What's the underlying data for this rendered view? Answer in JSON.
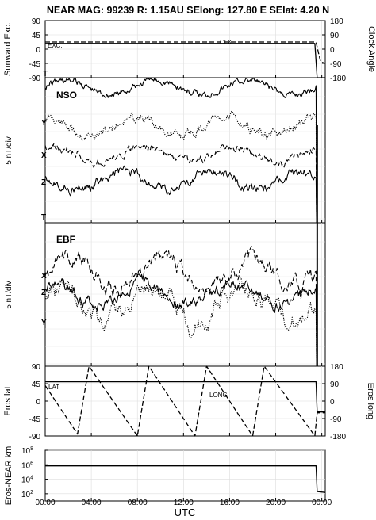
{
  "header": {
    "text": "NEAR MAG: 99239  R: 1.15AU  SElong: 127.80 E  SElat:    4.20 N"
  },
  "chart_data": [
    {
      "type": "line",
      "panel": "sunward",
      "ylabel_left": "Sunward Exc.",
      "ylabel_right": "Clock Angle",
      "yticks_left": [
        "90",
        "45",
        "0",
        "-45",
        "-90"
      ],
      "yticks_right": [
        "180",
        "90",
        "0",
        "-90",
        "-180"
      ],
      "ylim_left": [
        -90,
        90
      ],
      "ylim_right": [
        -180,
        180
      ],
      "labels": {
        "exc": "EXC.",
        "clk": "CLK",
        "marker": "T"
      },
      "series": [
        {
          "name": "EXC.",
          "style": "solid",
          "x": [
            0,
            1,
            4,
            8,
            12,
            16,
            20,
            23.4,
            23.6,
            24.3
          ],
          "y": [
            18,
            18,
            18,
            18,
            18,
            18,
            18,
            18,
            -90,
            -90
          ]
        },
        {
          "name": "CLK",
          "style": "dashed",
          "x": [
            0,
            4,
            8,
            12,
            16,
            20,
            23.5,
            23.7,
            23.9,
            24.3
          ],
          "y": [
            45,
            45,
            45,
            45,
            45,
            45,
            45,
            -20,
            -80,
            -90
          ]
        }
      ]
    },
    {
      "type": "line",
      "panel": "nso",
      "title": "NSO",
      "ylabel_left": "5 nT/div",
      "labels": [
        "Y",
        "X",
        "Z",
        "T"
      ],
      "series": [
        {
          "name": "Y",
          "style": "dotted"
        },
        {
          "name": "X",
          "style": "dashed"
        },
        {
          "name": "Z",
          "style": "solid"
        },
        {
          "name": "T",
          "style": "solid"
        }
      ]
    },
    {
      "type": "line",
      "panel": "ebf",
      "title": "EBF",
      "ylabel_left": "5 nT/div",
      "labels": [
        "X",
        "Z",
        "Y"
      ],
      "series": [
        {
          "name": "X",
          "style": "dashed"
        },
        {
          "name": "Z",
          "style": "solid"
        },
        {
          "name": "Y",
          "style": "dotted"
        }
      ]
    },
    {
      "type": "line",
      "panel": "eros",
      "ylabel_left": "Eros lat",
      "ylabel_right": "Eros long",
      "yticks_left": [
        "90",
        "45",
        "0",
        "-45",
        "-90"
      ],
      "yticks_right": [
        "180",
        "90",
        "0",
        "-90",
        "-180"
      ],
      "ylim_left": [
        -90,
        90
      ],
      "ylim_right": [
        -180,
        180
      ],
      "labels": {
        "lat": "LAT",
        "long": "LONG"
      },
      "series": [
        {
          "name": "LAT",
          "style": "solid",
          "x": [
            0,
            4,
            8,
            12,
            16,
            20,
            23.5,
            23.6,
            24.3
          ],
          "y": [
            50,
            50,
            50,
            50,
            50,
            50,
            50,
            -28,
            -28
          ]
        },
        {
          "name": "LONG",
          "style": "dashed",
          "x": [
            0,
            2.8,
            3.8,
            8.0,
            9.0,
            13.0,
            14.0,
            18.0,
            19.0,
            23.4,
            23.6,
            24.3
          ],
          "y": [
            80,
            -170,
            180,
            -180,
            180,
            -180,
            180,
            -180,
            180,
            -180,
            -60,
            -60
          ]
        }
      ]
    },
    {
      "type": "line",
      "panel": "distance",
      "ylabel_left": "Eros-NEAR km",
      "yscale": "log",
      "yticks_left": [
        "10^8",
        "10^6",
        "10^4",
        "10^2"
      ],
      "ylim": [
        10,
        100000000
      ],
      "series": [
        {
          "name": "Eros-NEAR km",
          "style": "solid",
          "x": [
            0,
            4,
            8,
            12,
            16,
            20,
            23.5,
            23.6,
            24.3
          ],
          "y": [
            700000,
            700000,
            700000,
            700000,
            700000,
            700000,
            700000,
            200,
            150
          ]
        }
      ]
    }
  ],
  "xaxis": {
    "label": "UTC",
    "ticks": [
      "00:00",
      "04:00",
      "08:00",
      "12:00",
      "16:00",
      "20:00",
      "00:00"
    ]
  }
}
